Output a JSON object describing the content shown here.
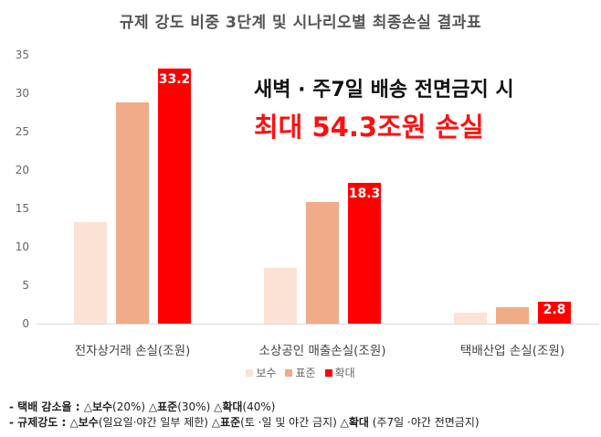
{
  "chart_data": {
    "type": "bar",
    "title": "규제 강도 비중 3단계 및 시나리오별 최종손실 결과표",
    "categories": [
      "전자상거래 손실(조원)",
      "소상공인 매출손실(조원)",
      "택배산업 손실(조원)"
    ],
    "series": [
      {
        "name": "보수",
        "color": "#FBE2D5",
        "values": [
          13.2,
          7.3,
          1.4
        ]
      },
      {
        "name": "표준",
        "color": "#F0AB88",
        "values": [
          28.8,
          15.8,
          2.1
        ]
      },
      {
        "name": "확대",
        "color": "#FF0000",
        "values": [
          33.2,
          18.3,
          2.8
        ]
      }
    ],
    "data_labels": {
      "확대": [
        "33.2",
        "18.3",
        "2.8"
      ]
    },
    "xlabel": "",
    "ylabel": "",
    "ylim": [
      0,
      35
    ],
    "yticks": [
      "0",
      "5",
      "10",
      "15",
      "20",
      "25",
      "30",
      "35"
    ],
    "grid": false,
    "legend_position": "bottom",
    "annotations": [
      "새벽 · 주7일 배송 전면금지 시",
      "최대 54.3조원 손실"
    ]
  },
  "title": "규제 강도 비중 3단계 및 시나리오별 최종손실 결과표",
  "annotation": {
    "line1": "새벽 · 주7일 배송 전면금지 시",
    "line2": "최대 54.3조원 손실"
  },
  "legend": [
    "보수",
    "표준",
    "확대"
  ],
  "notes": {
    "line1": {
      "label": "- 택배 감소율 :",
      "items": [
        {
          "tri": "△",
          "name": "보수",
          "detail": "(20%)"
        },
        {
          "tri": "△",
          "name": "표준",
          "detail": "(30%)"
        },
        {
          "tri": "△",
          "name": "확대",
          "detail": "(40%)"
        }
      ]
    },
    "line2": {
      "label": "- 규제강도 :",
      "items": [
        {
          "tri": "△",
          "name": "보수",
          "detail": "(일요일·야간 일부 제한)"
        },
        {
          "tri": "△",
          "name": "표준",
          "detail": "(토 ·일 및 야간 금지)"
        },
        {
          "tri": "△",
          "name": "확대",
          "detail": " (주7일 ·야간 전면금지)"
        }
      ]
    }
  }
}
